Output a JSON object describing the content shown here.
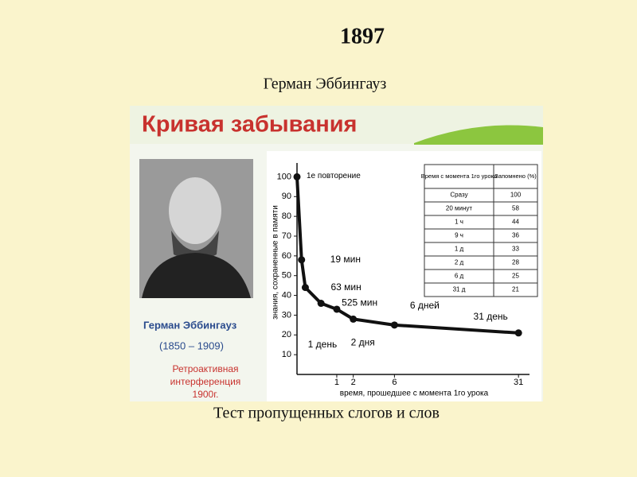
{
  "slide": {
    "year": "1897",
    "author": "Герман Эббингауз",
    "caption": "Тест пропущенных слогов и слов"
  },
  "image": {
    "title": "Кривая забывания",
    "person": "Герман Эббингауз",
    "years": "(1850 – 1909)",
    "note": [
      "Ретроактивная",
      "интерференция",
      "1900г."
    ]
  },
  "chart_data": {
    "type": "line",
    "x_label": "время, прошедшее с момента 1го урока",
    "y_label": "знания, сохраненные в памяти",
    "x": [
      0,
      0.0132,
      0.0437,
      0.3646,
      1,
      2,
      6,
      31
    ],
    "values": [
      100,
      58,
      44,
      36,
      33,
      28,
      25,
      21
    ],
    "point_labels": [
      "1е повторение",
      "19 мин",
      "63 мин",
      "525 мин",
      "1 день",
      "2 дня",
      "6 дней",
      "31 день"
    ],
    "color": "#111111",
    "x_scale": "sqrt",
    "xlim": [
      0,
      33
    ],
    "xticks": [
      1,
      2,
      6,
      31
    ],
    "ylim": [
      0,
      105
    ],
    "yticks": [
      10,
      20,
      30,
      40,
      50,
      60,
      70,
      80,
      90,
      100
    ]
  },
  "table": {
    "header": [
      "Время с момента 1го урока",
      "Запомнено (%)"
    ],
    "rows": [
      [
        "Сразу",
        "100"
      ],
      [
        "20 минут",
        "58"
      ],
      [
        "1 ч",
        "44"
      ],
      [
        "9 ч",
        "36"
      ],
      [
        "1 д",
        "33"
      ],
      [
        "2 д",
        "28"
      ],
      [
        "6 д",
        "25"
      ],
      [
        "31 д",
        "21"
      ]
    ]
  }
}
